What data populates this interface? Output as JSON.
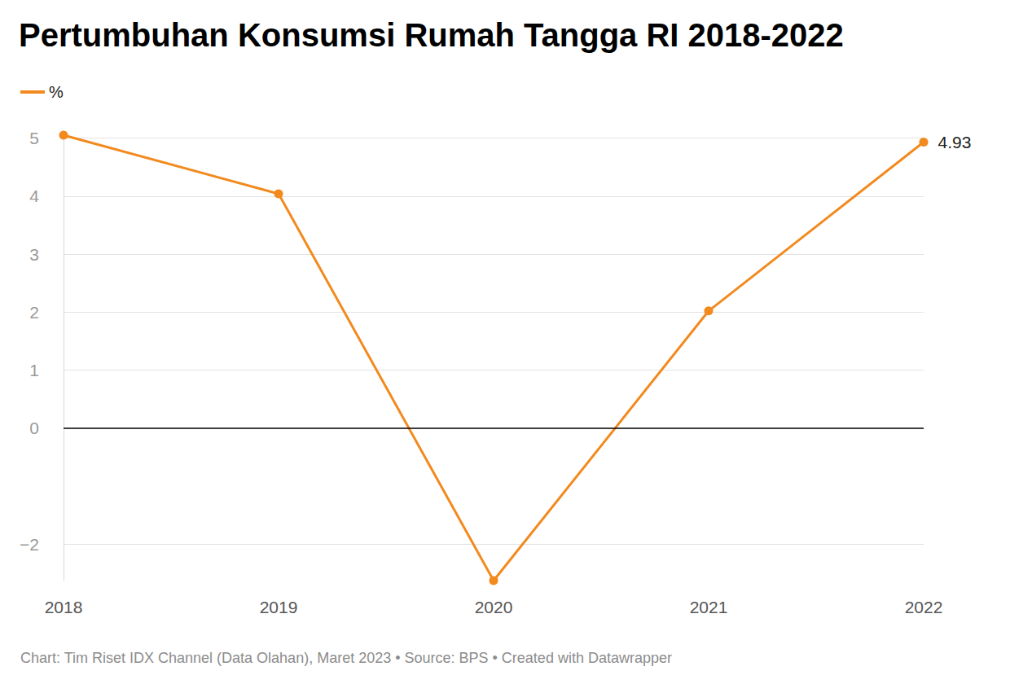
{
  "chart_data": {
    "type": "line",
    "title": "Pertumbuhan Konsumsi Rumah Tangga RI 2018-2022",
    "source": "Chart: Tim Riset IDX Channel (Data Olahan), Maret 2023 • Source: BPS • Created with Datawrapper",
    "categories": [
      "2018",
      "2019",
      "2020",
      "2021",
      "2022"
    ],
    "series": [
      {
        "name": "%",
        "color": "#f28a1e",
        "values": [
          5.05,
          4.04,
          -2.63,
          2.02,
          4.93
        ],
        "marker": "circle",
        "line_style": "solid"
      }
    ],
    "annotations": [
      {
        "category": "2022",
        "text": "4.93"
      }
    ],
    "ylim": [
      -2.63,
      5.05
    ],
    "yticks": [
      {
        "value": -2,
        "label": "−2"
      },
      0,
      1,
      2,
      3,
      4,
      5
    ],
    "grid": true,
    "legend": "top-left"
  }
}
